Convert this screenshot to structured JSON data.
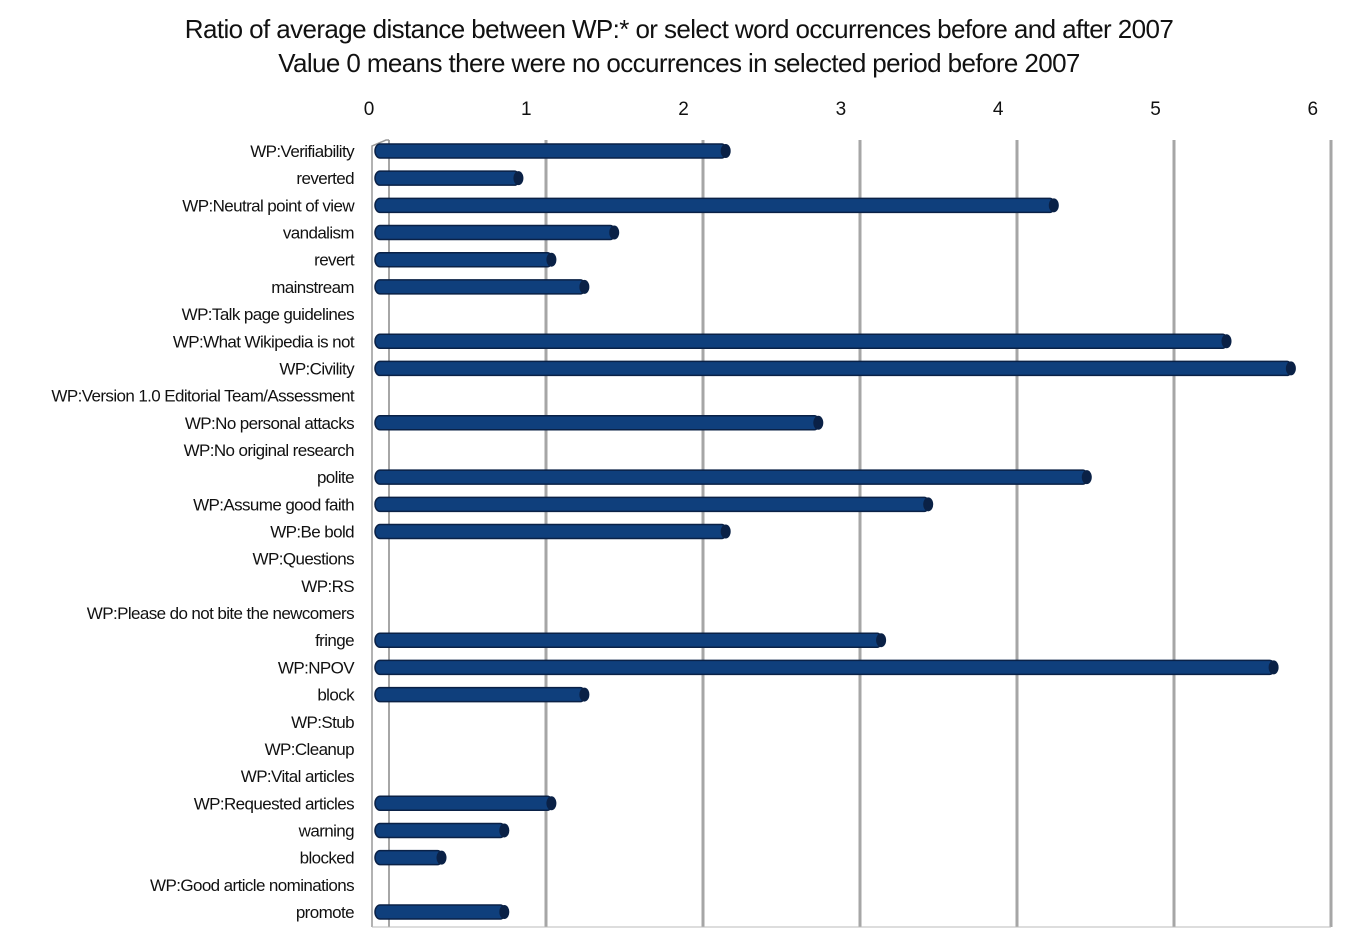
{
  "chart_data": {
    "type": "bar",
    "orientation": "horizontal",
    "title": [
      "Ratio of average distance between WP:* or select word occurrences before and after 2007",
      "Value 0 means there were no occurrences in selected period before 2007"
    ],
    "xlabel": "",
    "ylabel": "",
    "xlim": [
      0,
      6
    ],
    "xticks": [
      "0",
      "1",
      "2",
      "3",
      "4",
      "5",
      "6"
    ],
    "grid": true,
    "bar_color": "#0f3f7c",
    "categories": [
      "WP:Verifiability",
      "reverted",
      "WP:Neutral point of view",
      "vandalism",
      "revert",
      "mainstream",
      "WP:Talk page guidelines",
      "WP:What Wikipedia is not",
      "WP:Civility",
      "WP:Version 1.0 Editorial Team/Assessment",
      "WP:No personal attacks",
      "WP:No original research",
      "polite",
      "WP:Assume good faith",
      "WP:Be bold",
      "WP:Questions",
      "WP:RS",
      "WP:Please do not bite the newcomers",
      "fringe",
      "WP:NPOV",
      "block",
      "WP:Stub",
      "WP:Cleanup",
      "WP:Vital articles",
      "WP:Requested articles",
      "warning",
      "blocked",
      "WP:Good article nominations",
      "promote"
    ],
    "values": [
      2.24,
      0.92,
      4.33,
      1.53,
      1.13,
      1.34,
      0,
      5.43,
      5.84,
      0,
      2.83,
      0,
      4.54,
      3.53,
      2.24,
      0,
      0,
      0,
      3.23,
      5.73,
      1.34,
      0,
      0,
      0,
      1.13,
      0.83,
      0.43,
      0,
      0.83
    ]
  }
}
